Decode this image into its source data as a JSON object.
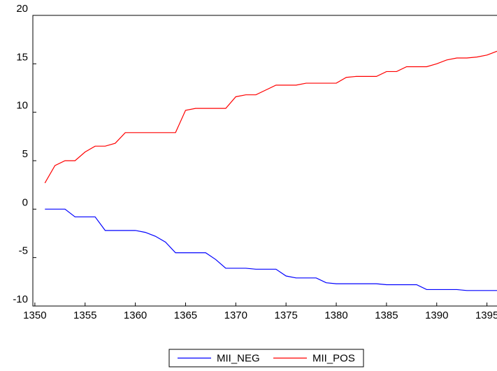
{
  "chart_data": {
    "type": "line",
    "x": [
      1351,
      1352,
      1353,
      1354,
      1355,
      1356,
      1357,
      1358,
      1359,
      1360,
      1361,
      1362,
      1363,
      1364,
      1365,
      1366,
      1367,
      1368,
      1369,
      1370,
      1371,
      1372,
      1373,
      1374,
      1375,
      1376,
      1377,
      1378,
      1379,
      1380,
      1381,
      1382,
      1383,
      1384,
      1385,
      1386,
      1387,
      1388,
      1389,
      1390,
      1391,
      1392,
      1393,
      1394,
      1395,
      1396
    ],
    "series": [
      {
        "name": "MII_NEG",
        "color": "#0000ff",
        "values": [
          0,
          0,
          0,
          -0.8,
          -0.8,
          -0.8,
          -2.2,
          -2.2,
          -2.2,
          -2.2,
          -2.4,
          -2.8,
          -3.4,
          -4.5,
          -4.5,
          -4.5,
          -4.5,
          -5.2,
          -6.1,
          -6.1,
          -6.1,
          -6.2,
          -6.2,
          -6.2,
          -6.9,
          -7.1,
          -7.1,
          -7.1,
          -7.6,
          -7.7,
          -7.7,
          -7.7,
          -7.7,
          -7.7,
          -7.8,
          -7.8,
          -7.8,
          -7.8,
          -8.3,
          -8.3,
          -8.3,
          -8.3,
          -8.4,
          -8.4,
          -8.4,
          -8.4
        ]
      },
      {
        "name": "MII_POS",
        "color": "#ff0000",
        "values": [
          2.7,
          4.5,
          5.0,
          5.0,
          5.9,
          6.5,
          6.5,
          6.8,
          7.9,
          7.9,
          7.9,
          7.9,
          7.9,
          7.9,
          10.2,
          10.4,
          10.4,
          10.4,
          10.4,
          11.6,
          11.8,
          11.8,
          12.3,
          12.8,
          12.8,
          12.8,
          13.0,
          13.0,
          13.0,
          13.0,
          13.6,
          13.7,
          13.7,
          13.7,
          14.2,
          14.2,
          14.7,
          14.7,
          14.7,
          15.0,
          15.4,
          15.6,
          15.6,
          15.7,
          15.9,
          16.3
        ]
      }
    ],
    "xlim": [
      1349.8,
      1396
    ],
    "xticks": [
      1350,
      1355,
      1360,
      1365,
      1370,
      1375,
      1380,
      1385,
      1390,
      1395
    ],
    "ylim": [
      -10,
      20
    ],
    "yticks": [
      -10,
      -5,
      0,
      5,
      10,
      15,
      20
    ],
    "grid": false,
    "legend": "bottom"
  }
}
